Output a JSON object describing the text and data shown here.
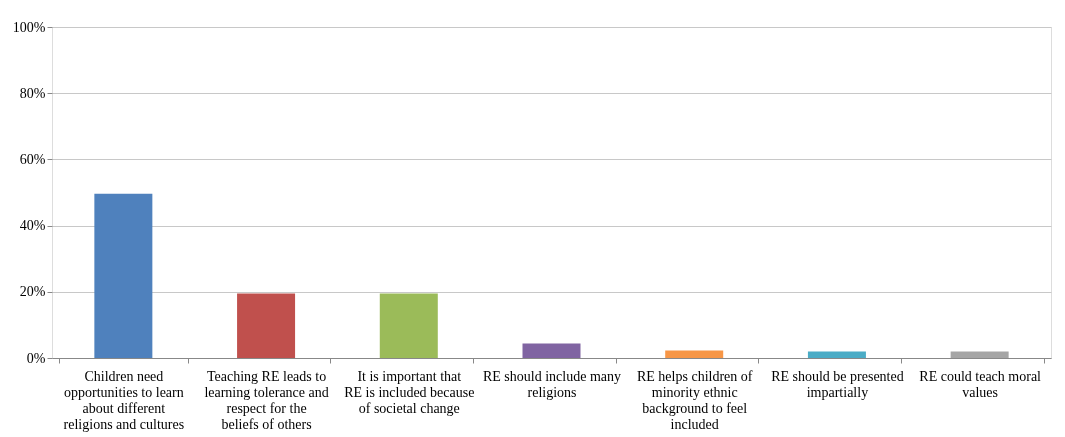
{
  "chart_data": {
    "type": "bar",
    "categories": [
      "Children need opportunities to learn about different religions and cultures",
      "Teaching RE leads to learning tolerance and respect for the beliefs of others",
      "It is important that RE is included because of societal change",
      "RE should include many religions",
      "RE helps children of minority ethnic background to feel included",
      "RE should be presented impartially",
      "RE could teach moral values"
    ],
    "values": [
      49.6,
      19.5,
      19.5,
      4.4,
      2.3,
      2.0,
      2.0
    ],
    "colors": [
      "#4f81bd",
      "#c0504d",
      "#9bbb59",
      "#8064a2",
      "#f79646",
      "#4bacc6",
      "#a5a5a5"
    ],
    "ylim": [
      0,
      100
    ],
    "yticks": [
      {
        "value": 0,
        "label": "0%"
      },
      {
        "value": 20,
        "label": "20%"
      },
      {
        "value": 40,
        "label": "40%"
      },
      {
        "value": 60,
        "label": "60%"
      },
      {
        "value": 80,
        "label": "80%"
      },
      {
        "value": 100,
        "label": "100%"
      }
    ],
    "grid": "y",
    "legend": false
  }
}
